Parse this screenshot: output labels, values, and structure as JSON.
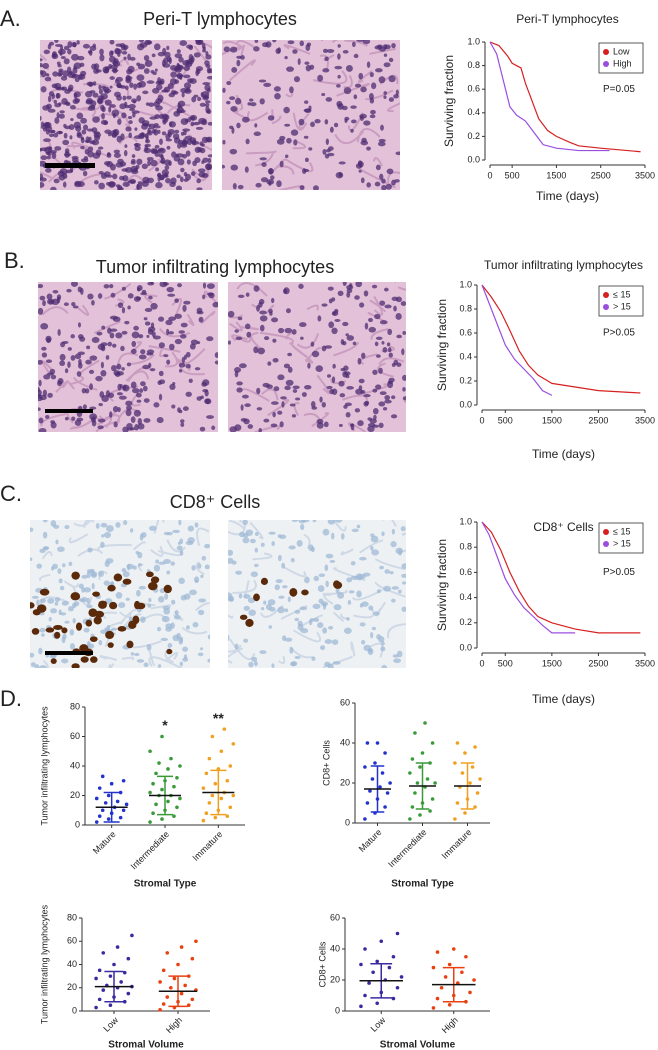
{
  "figure": {
    "panel_labels": [
      "A.",
      "B.",
      "C.",
      "D."
    ],
    "image_titles": [
      "Peri-T lymphocytes",
      "Tumor infiltrating lymphocytes",
      "CD8⁺ Cells"
    ]
  },
  "chart_data": [
    {
      "type": "line",
      "title": "Peri-T lymphocytes",
      "x_label": "Time (days)",
      "y_label": "Surviving fraction",
      "annotation": "P=0.05",
      "xlim": [
        0,
        3500
      ],
      "xticks": [
        0,
        500,
        1500,
        2500,
        3500
      ],
      "ylim": [
        0,
        1
      ],
      "yticks": [
        {
          "value": 0,
          "label": "0.0"
        },
        0.2,
        0.4,
        0.6,
        0.8,
        {
          "value": 1,
          "label": "1.0"
        }
      ],
      "legend": "upper right",
      "series": [
        {
          "name": "Low",
          "color": "#d62020",
          "x": [
            0,
            200,
            400,
            500,
            700,
            800,
            900,
            1000,
            1100,
            1300,
            1500,
            1800,
            2000,
            2500,
            3400
          ],
          "values": [
            1,
            0.97,
            0.88,
            0.82,
            0.78,
            0.65,
            0.55,
            0.45,
            0.35,
            0.25,
            0.2,
            0.15,
            0.12,
            0.1,
            0.07
          ]
        },
        {
          "name": "High",
          "color": "#9a4ee0",
          "x": [
            0,
            150,
            250,
            350,
            450,
            600,
            800,
            1000,
            1200,
            1500,
            2000,
            2700
          ],
          "values": [
            1,
            0.9,
            0.75,
            0.6,
            0.45,
            0.38,
            0.33,
            0.23,
            0.13,
            0.1,
            0.08,
            0.08
          ]
        }
      ]
    },
    {
      "type": "line",
      "title": "Tumor infiltrating lymphocytes",
      "x_label": "Time (days)",
      "y_label": "Surviving fraction",
      "annotation": "P>0.05",
      "xlim": [
        0,
        3500
      ],
      "xticks": [
        0,
        500,
        1500,
        2500,
        3500
      ],
      "ylim": [
        0,
        1
      ],
      "yticks": [
        {
          "value": 0,
          "label": "0.0"
        },
        0.2,
        0.4,
        0.6,
        0.8,
        {
          "value": 1,
          "label": "1.0"
        }
      ],
      "legend": "upper right",
      "series": [
        {
          "name": "≤ 15",
          "color": "#d62020",
          "x": [
            0,
            200,
            400,
            600,
            800,
            1000,
            1200,
            1500,
            2000,
            2500,
            3400
          ],
          "values": [
            1,
            0.9,
            0.78,
            0.62,
            0.45,
            0.33,
            0.25,
            0.18,
            0.15,
            0.12,
            0.1
          ]
        },
        {
          "name": "> 15",
          "color": "#9a4ee0",
          "x": [
            0,
            150,
            300,
            500,
            700,
            900,
            1100,
            1300,
            1500
          ],
          "values": [
            1,
            0.85,
            0.7,
            0.5,
            0.38,
            0.3,
            0.22,
            0.12,
            0.08
          ]
        }
      ]
    },
    {
      "type": "line",
      "title": "CD8⁺ Cells",
      "x_label": "Time (days)",
      "y_label": "Surviving fraction",
      "annotation": "P>0.05",
      "xlim": [
        0,
        3500
      ],
      "xticks": [
        0,
        500,
        1500,
        2500,
        3500
      ],
      "ylim": [
        0,
        1
      ],
      "yticks": [
        {
          "value": 0,
          "label": "0.0"
        },
        0.2,
        0.4,
        0.6,
        0.8,
        {
          "value": 1,
          "label": "1.0"
        }
      ],
      "legend": "upper right",
      "series": [
        {
          "name": "≤ 15",
          "color": "#d62020",
          "x": [
            0,
            200,
            400,
            600,
            800,
            1000,
            1200,
            1500,
            2000,
            2500,
            3400
          ],
          "values": [
            1,
            0.92,
            0.78,
            0.6,
            0.45,
            0.33,
            0.25,
            0.2,
            0.15,
            0.12,
            0.12
          ]
        },
        {
          "name": "> 15",
          "color": "#9a4ee0",
          "x": [
            0,
            150,
            300,
            500,
            700,
            900,
            1100,
            1300,
            1500,
            2000
          ],
          "values": [
            1,
            0.9,
            0.75,
            0.55,
            0.42,
            0.32,
            0.25,
            0.18,
            0.12,
            0.12
          ]
        }
      ]
    },
    {
      "type": "strip",
      "y_label": "Tumor infiltrating lymphocytes",
      "x_label": "Stromal Type",
      "ylim": [
        0,
        80
      ],
      "yticks": [
        0,
        20,
        40,
        60,
        80
      ],
      "significance": [
        null,
        "*",
        "**"
      ],
      "groups": [
        {
          "name": "Mature",
          "color": "#2233cc",
          "mean": 12,
          "sd": 10,
          "values": [
            2,
            4,
            5,
            6,
            8,
            10,
            10,
            12,
            14,
            15,
            16,
            18,
            20,
            22,
            25,
            28,
            30,
            33
          ]
        },
        {
          "name": "Intermediate",
          "color": "#3a9a3a",
          "mean": 20,
          "sd": 13,
          "values": [
            2,
            4,
            6,
            8,
            10,
            12,
            14,
            16,
            18,
            20,
            20,
            22,
            24,
            26,
            28,
            30,
            32,
            35,
            38,
            40,
            42,
            45,
            50,
            60
          ]
        },
        {
          "name": "Immature",
          "color": "#f0a020",
          "mean": 22,
          "sd": 15,
          "values": [
            3,
            5,
            6,
            8,
            10,
            12,
            15,
            18,
            20,
            20,
            22,
            25,
            28,
            30,
            35,
            38,
            40,
            45,
            50,
            55,
            60,
            65
          ]
        }
      ]
    },
    {
      "type": "strip",
      "y_label": "CD8+ Cells",
      "x_label": "Stromal Type",
      "ylim": [
        0,
        60
      ],
      "yticks": [
        0,
        20,
        40,
        60
      ],
      "groups": [
        {
          "name": "Mature",
          "color": "#2233cc",
          "mean": 17,
          "sd": 11.5,
          "values": [
            2,
            5,
            8,
            10,
            12,
            15,
            16,
            18,
            20,
            22,
            25,
            28,
            30,
            35,
            40,
            40
          ]
        },
        {
          "name": "Intermediate",
          "color": "#3a9a3a",
          "mean": 18.5,
          "sd": 11.5,
          "values": [
            2,
            4,
            6,
            8,
            10,
            12,
            15,
            18,
            20,
            20,
            22,
            25,
            28,
            30,
            32,
            35,
            40,
            45,
            50
          ]
        },
        {
          "name": "Immature",
          "color": "#f0a020",
          "mean": 18.5,
          "sd": 11.5,
          "values": [
            2,
            5,
            8,
            10,
            12,
            15,
            18,
            20,
            22,
            25,
            28,
            30,
            35,
            38,
            40
          ]
        }
      ]
    },
    {
      "type": "strip",
      "y_label": "Tumor infiltrating lymphocytes",
      "x_label": "Stromal Volume",
      "ylim": [
        0,
        80
      ],
      "yticks": [
        0,
        20,
        40,
        60,
        80
      ],
      "groups": [
        {
          "name": "Low",
          "color": "#3a2aa0",
          "mean": 21,
          "sd": 13,
          "values": [
            3,
            5,
            8,
            10,
            12,
            15,
            18,
            20,
            21,
            22,
            25,
            28,
            30,
            33,
            35,
            40,
            45,
            50,
            55,
            65
          ]
        },
        {
          "name": "High",
          "color": "#e84010",
          "mean": 17,
          "sd": 13,
          "values": [
            1,
            3,
            5,
            6,
            8,
            10,
            12,
            15,
            18,
            20,
            22,
            25,
            28,
            30,
            35,
            40,
            45,
            50,
            55,
            60
          ]
        }
      ]
    },
    {
      "type": "strip",
      "y_label": "CD8+ Cells",
      "x_label": "Stromal Volume",
      "ylim": [
        0,
        60
      ],
      "yticks": [
        0,
        20,
        40,
        60
      ],
      "groups": [
        {
          "name": "Low",
          "color": "#3a2aa0",
          "mean": 19.5,
          "sd": 11,
          "values": [
            3,
            5,
            8,
            10,
            12,
            15,
            18,
            20,
            22,
            25,
            28,
            30,
            32,
            35,
            40,
            45,
            50
          ]
        },
        {
          "name": "High",
          "color": "#e84010",
          "mean": 17,
          "sd": 11,
          "values": [
            2,
            4,
            6,
            8,
            10,
            12,
            15,
            18,
            20,
            22,
            25,
            28,
            30,
            35,
            38,
            40
          ]
        }
      ]
    }
  ]
}
